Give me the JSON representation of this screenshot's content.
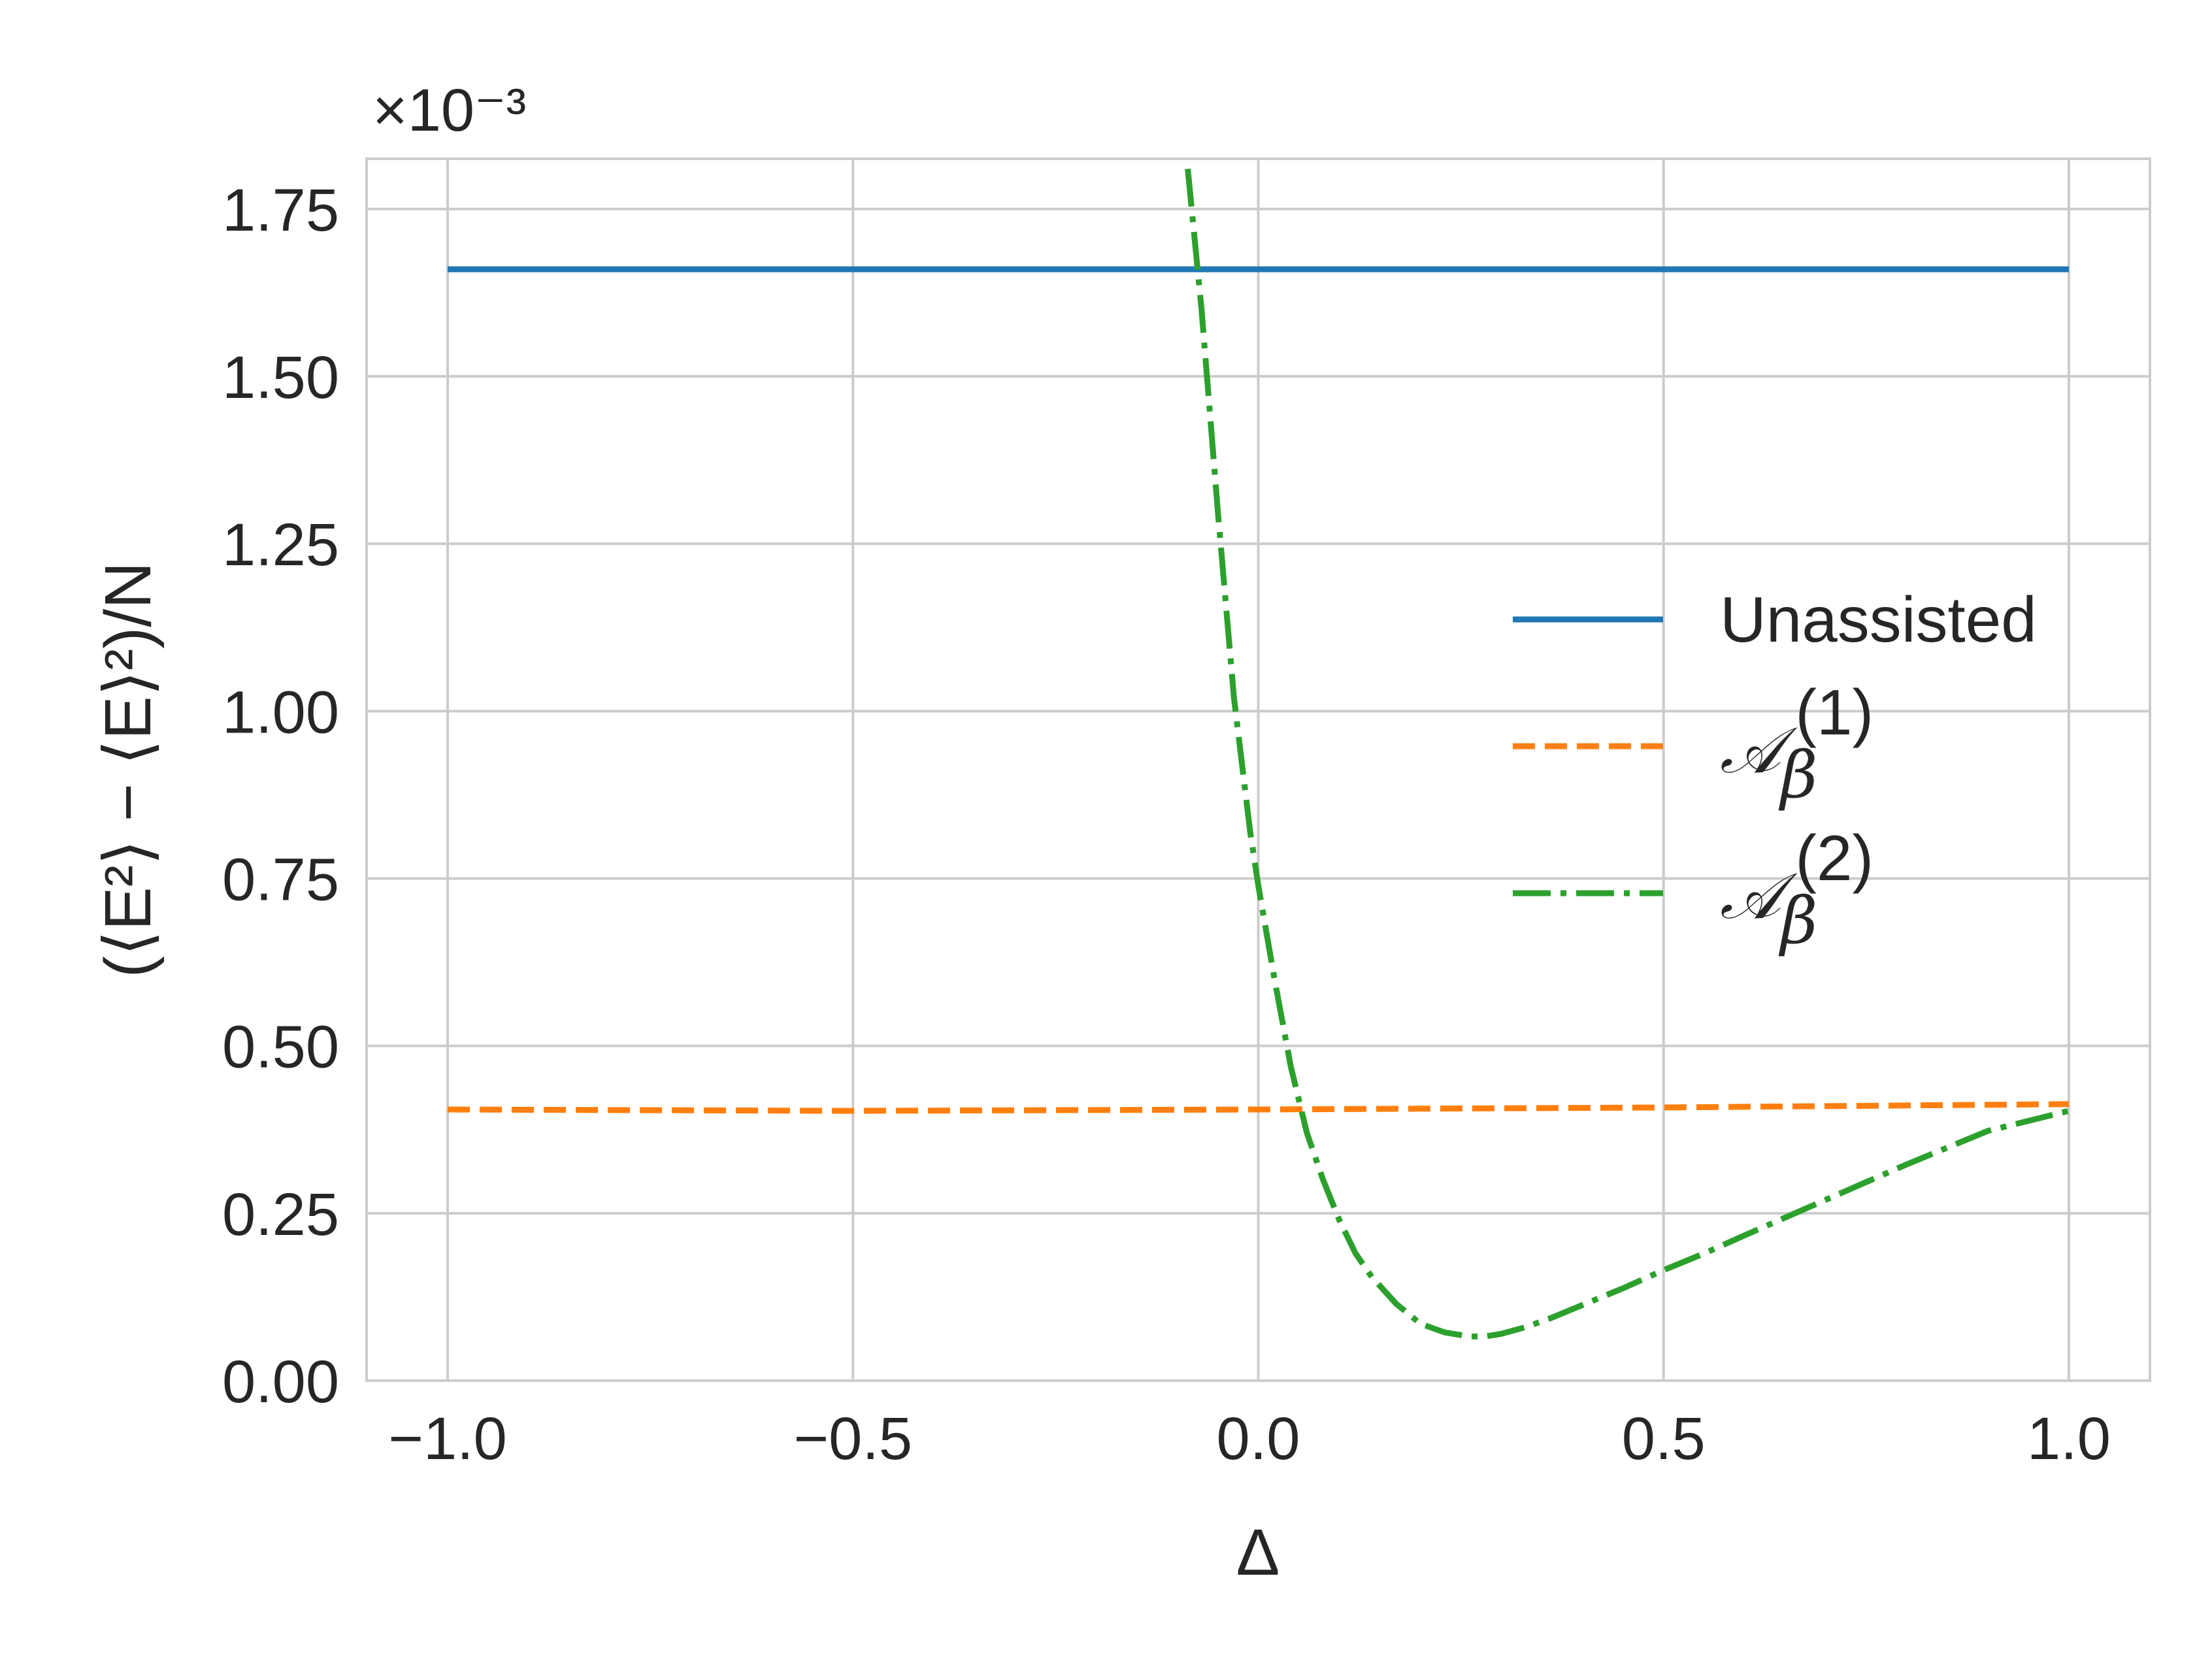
{
  "chart_data": {
    "type": "line",
    "xlabel": "Δ",
    "ylabel": "(⟨E²⟩ − ⟨E⟩²)/N",
    "y_offset_text": "×10⁻³",
    "y_scale_factor": 0.001,
    "xlim": [
      -1.1,
      1.1
    ],
    "ylim": [
      0.0,
      1.825
    ],
    "x_ticks": [
      -1.0,
      -0.5,
      0.0,
      0.5,
      1.0
    ],
    "x_tick_labels": [
      "−1.0",
      "−0.5",
      "0.0",
      "0.5",
      "1.0"
    ],
    "y_ticks": [
      0.0,
      0.25,
      0.5,
      0.75,
      1.0,
      1.25,
      1.5,
      1.75
    ],
    "y_tick_labels": [
      "0.00",
      "0.25",
      "0.50",
      "0.75",
      "1.00",
      "1.25",
      "1.50",
      "1.75"
    ],
    "grid": true,
    "legend_position": "right",
    "series": [
      {
        "name": "Unassisted",
        "style": "solid",
        "color": "#1f77b4",
        "x": [
          -1.0,
          1.0
        ],
        "y": [
          1.66,
          1.66
        ]
      },
      {
        "name": "A_β^(1)",
        "style": "dashed",
        "color": "#ff7f0e",
        "x": [
          -1.0,
          -0.5,
          0.0,
          0.5,
          1.0
        ],
        "y": [
          0.405,
          0.403,
          0.405,
          0.408,
          0.413
        ]
      },
      {
        "name": "A_β^(2)",
        "style": "dashdot",
        "color": "#2ca02c",
        "x": [
          -0.087,
          -0.07,
          -0.05,
          -0.03,
          -0.01,
          0.0,
          0.02,
          0.04,
          0.06,
          0.08,
          0.1,
          0.12,
          0.14,
          0.17,
          0.2,
          0.23,
          0.26,
          0.28,
          0.3,
          0.33,
          0.36,
          0.4,
          0.45,
          0.5,
          0.55,
          0.6,
          0.7,
          0.8,
          0.9,
          1.0
        ],
        "y": [
          1.81,
          1.6,
          1.3,
          1.02,
          0.82,
          0.74,
          0.6,
          0.47,
          0.37,
          0.3,
          0.24,
          0.19,
          0.155,
          0.115,
          0.085,
          0.072,
          0.066,
          0.066,
          0.07,
          0.08,
          0.093,
          0.113,
          0.138,
          0.165,
          0.19,
          0.217,
          0.27,
          0.323,
          0.373,
          0.403
        ]
      }
    ]
  }
}
